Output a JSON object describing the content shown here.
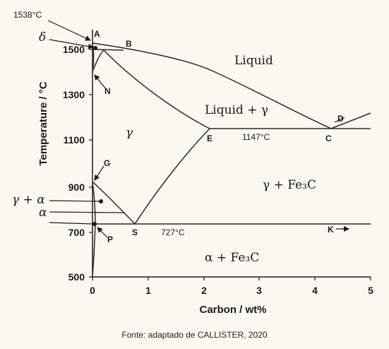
{
  "axes": {
    "x_title": "Carbon / wt%",
    "y_title": "Temperature / °C",
    "x_ticks": [
      "0",
      "1",
      "2",
      "3",
      "4",
      "5"
    ],
    "y_ticks": [
      "500",
      "700",
      "900",
      "1100",
      "1300",
      "1500"
    ]
  },
  "annotations": {
    "melt_temp": "1538°C",
    "eutectic_temp": "1147°C",
    "eutectoid_temp": "727°C"
  },
  "points": {
    "A": "A",
    "B": "B",
    "C": "C",
    "D": "D",
    "E": "E",
    "G": "G",
    "K": "K",
    "N": "N",
    "P": "P",
    "S": "S"
  },
  "phases": {
    "liquid": "Liquid",
    "liquid_gamma": "Liquid + γ",
    "gamma": "γ",
    "gamma_fe3c": "γ + Fe₃C",
    "alpha_fe3c": "α + Fe₃C",
    "delta": "δ",
    "gamma_alpha": "γ + α",
    "alpha": "α"
  },
  "caption": "Fonte: adaptado de CALLISTER, 2020"
}
